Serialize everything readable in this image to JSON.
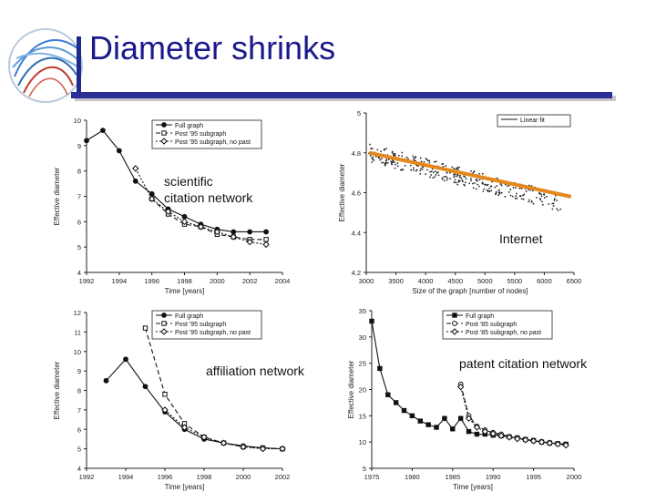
{
  "slide": {
    "title": "Diameter shrinks",
    "colors": {
      "title": "#1a1a8c",
      "rule": "#2b2f95",
      "logo": "#3a7bd5",
      "fit": "#e5891c"
    }
  },
  "overlays": {
    "top_left": "scientific\ncitation network",
    "top_right": "Internet",
    "bottom_left": "affiliation network",
    "bottom_right": "patent citation network"
  },
  "chart_data": [
    {
      "type": "line",
      "id": "citation",
      "xlabel": "Time [years]",
      "ylabel": "Effective diameter",
      "xlim": [
        1992,
        2004
      ],
      "ylim": [
        4,
        10
      ],
      "xticks": [
        "1992",
        "1994",
        "1996",
        "1998",
        "2000",
        "2002",
        "2004"
      ],
      "yticks": [
        "4",
        "5",
        "6",
        "7",
        "8",
        "9",
        "10"
      ],
      "legend_position": "top-right",
      "series": [
        {
          "name": "Full graph",
          "marker": "circle",
          "dash": "solid",
          "x": [
            1992,
            1993,
            1994,
            1995,
            1996,
            1997,
            1998,
            1999,
            2000,
            2001,
            2002,
            2003
          ],
          "y": [
            9.2,
            9.6,
            8.8,
            7.6,
            7.1,
            6.5,
            6.2,
            5.9,
            5.7,
            5.6,
            5.6,
            5.6
          ]
        },
        {
          "name": "Post '95 subgraph",
          "marker": "square",
          "dash": "dashed",
          "x": [
            1996,
            1997,
            1998,
            1999,
            2000,
            2001,
            2002,
            2003
          ],
          "y": [
            6.9,
            6.3,
            5.9,
            5.8,
            5.5,
            5.4,
            5.3,
            5.3
          ]
        },
        {
          "name": "Post '95 subgraph, no past",
          "marker": "diamond",
          "dash": "dotted",
          "x": [
            1995,
            1996,
            1997,
            1998,
            1999,
            2000,
            2001,
            2002,
            2003
          ],
          "y": [
            8.1,
            6.9,
            6.4,
            6.0,
            5.8,
            5.6,
            5.4,
            5.2,
            5.1
          ]
        }
      ]
    },
    {
      "type": "scatter",
      "id": "internet",
      "xlabel": "Size of the graph [number of nodes]",
      "ylabel": "Effective diameter",
      "xlim": [
        3000,
        6500
      ],
      "ylim": [
        4.2,
        5
      ],
      "xticks": [
        "3000",
        "3500",
        "4000",
        "4500",
        "5000",
        "5500",
        "6000",
        "6500"
      ],
      "yticks": [
        "4.2",
        "4.4",
        "4.6",
        "4.8",
        "5"
      ],
      "legend_position": "top-right",
      "trend": {
        "start": 4.8,
        "end": 4.55,
        "noise": 0.045,
        "count": 320,
        "x_from": 3050,
        "x_to": 6300
      },
      "series": [
        {
          "name": "Linear fit",
          "x": [
            3050,
            6450
          ],
          "y": [
            4.8,
            4.58
          ]
        }
      ]
    },
    {
      "type": "line",
      "id": "affiliation",
      "xlabel": "Time [years]",
      "ylabel": "Effective diameter",
      "xlim": [
        1992,
        2002
      ],
      "ylim": [
        4,
        12
      ],
      "xticks": [
        "1992",
        "1994",
        "1996",
        "1998",
        "2000",
        "2002"
      ],
      "yticks": [
        "4",
        "5",
        "6",
        "7",
        "8",
        "9",
        "10",
        "11",
        "12"
      ],
      "legend_position": "top-right",
      "series": [
        {
          "name": "Full graph",
          "marker": "circle",
          "dash": "solid",
          "x": [
            1993,
            1994,
            1995,
            1996,
            1997,
            1998,
            1999,
            2000,
            2001,
            2002
          ],
          "y": [
            8.5,
            9.6,
            8.2,
            6.9,
            6.0,
            5.5,
            5.3,
            5.15,
            5.05,
            5.0
          ]
        },
        {
          "name": "Post '95 subgraph",
          "marker": "square",
          "dash": "dashed",
          "x": [
            1995,
            1996,
            1997,
            1998,
            1999,
            2000,
            2001,
            2002
          ],
          "y": [
            11.2,
            7.8,
            6.3,
            5.6,
            5.3,
            5.1,
            5.05,
            5.0
          ]
        },
        {
          "name": "Post '95 subgraph, no past",
          "marker": "diamond",
          "dash": "dotted",
          "x": [
            1996,
            1997,
            1998,
            1999,
            2000,
            2001,
            2002
          ],
          "y": [
            7.0,
            6.1,
            5.6,
            5.3,
            5.1,
            5.0,
            5.0
          ]
        }
      ]
    },
    {
      "type": "line",
      "id": "patent",
      "xlabel": "Time [years]",
      "ylabel": "Effective diameter",
      "xlim": [
        1975,
        2000
      ],
      "ylim": [
        5,
        35
      ],
      "xticks": [
        "1975",
        "1980",
        "1985",
        "1990",
        "1995",
        "2000"
      ],
      "yticks": [
        "5",
        "10",
        "15",
        "20",
        "25",
        "30",
        "35"
      ],
      "legend_position": "top-right",
      "series": [
        {
          "name": "Full graph",
          "marker": "square",
          "dash": "solid",
          "x": [
            1975,
            1976,
            1977,
            1978,
            1979,
            1980,
            1981,
            1982,
            1983,
            1984,
            1985,
            1986,
            1987,
            1988,
            1989,
            1990,
            1991,
            1992,
            1993,
            1994,
            1995,
            1996,
            1997,
            1998,
            1999
          ],
          "y": [
            33,
            24,
            19,
            17.5,
            16,
            15,
            14,
            13.3,
            12.8,
            14.5,
            12.5,
            14.5,
            12,
            11.5,
            11.5,
            11.3,
            11.2,
            11,
            10.8,
            10.5,
            10.3,
            10,
            9.8,
            9.7,
            9.6
          ]
        },
        {
          "name": "Post '85 subgraph",
          "marker": "circle",
          "dash": "dashed",
          "x": [
            1986,
            1987,
            1988,
            1989,
            1990,
            1991,
            1992,
            1993,
            1994,
            1995,
            1996,
            1997,
            1998,
            1999
          ],
          "y": [
            21,
            15,
            13,
            12.3,
            11.8,
            11.5,
            11,
            10.8,
            10.5,
            10.3,
            10.1,
            9.9,
            9.7,
            9.6
          ]
        },
        {
          "name": "Post '85 subgraph, no past",
          "marker": "diamond",
          "dash": "dotted",
          "x": [
            1986,
            1987,
            1988,
            1989,
            1990,
            1991,
            1992,
            1993,
            1994,
            1995,
            1996,
            1997,
            1998,
            1999
          ],
          "y": [
            20.5,
            14.5,
            12.8,
            12,
            11.6,
            11.2,
            10.9,
            10.6,
            10.4,
            10.2,
            10,
            9.8,
            9.6,
            9.4
          ]
        }
      ]
    }
  ]
}
